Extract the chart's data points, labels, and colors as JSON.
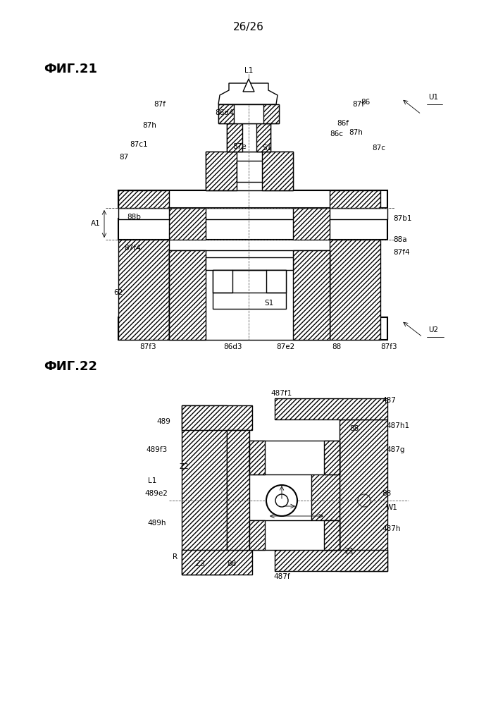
{
  "page_label": "26/26",
  "fig21_label": "ФИГ.21",
  "fig22_label": "ФИГ.22",
  "bg_color": "#ffffff",
  "line_color": "#000000"
}
